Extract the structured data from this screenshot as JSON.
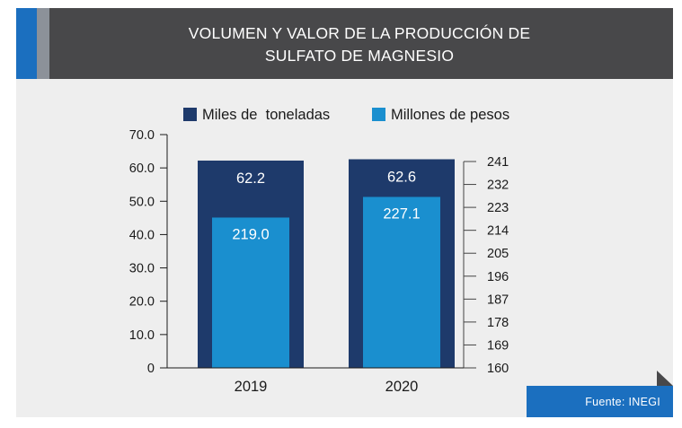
{
  "title_line1": "VOLUMEN Y VALOR DE LA PRODUCCIÓN DE",
  "title_line2": "SULFATO DE MAGNESIO",
  "source": "Fuente: INEGI",
  "colors": {
    "header_bg": "#48484a",
    "accent_blue": "#1b6fbf",
    "accent_gray": "#8c9199",
    "panel_bg": "#eeeeee",
    "dark_series": "#1e3a6b",
    "light_series": "#1a8fcf"
  },
  "chart_data": {
    "type": "bar",
    "categories": [
      "2019",
      "2020"
    ],
    "series": [
      {
        "name": "Miles de  toneladas",
        "values": [
          62.2,
          62.6
        ],
        "labels": [
          "62.2",
          "62.6"
        ],
        "axis": "left",
        "color": "#1e3a6b"
      },
      {
        "name": "Millones de pesos",
        "values": [
          219.0,
          227.1
        ],
        "labels": [
          "219.0",
          "227.1"
        ],
        "axis": "right",
        "color": "#1a8fcf"
      }
    ],
    "y_left": {
      "min": 0,
      "max": 70,
      "ticks": [
        "0",
        "10.0",
        "20.0",
        "30.0",
        "40.0",
        "50.0",
        "60.0",
        "70.0"
      ]
    },
    "y_right": {
      "min": 160,
      "max": 241,
      "ticks": [
        "160",
        "169",
        "178",
        "187",
        "196",
        "205",
        "214",
        "223",
        "232",
        "241"
      ]
    },
    "legend_position": "top",
    "grid": false
  }
}
